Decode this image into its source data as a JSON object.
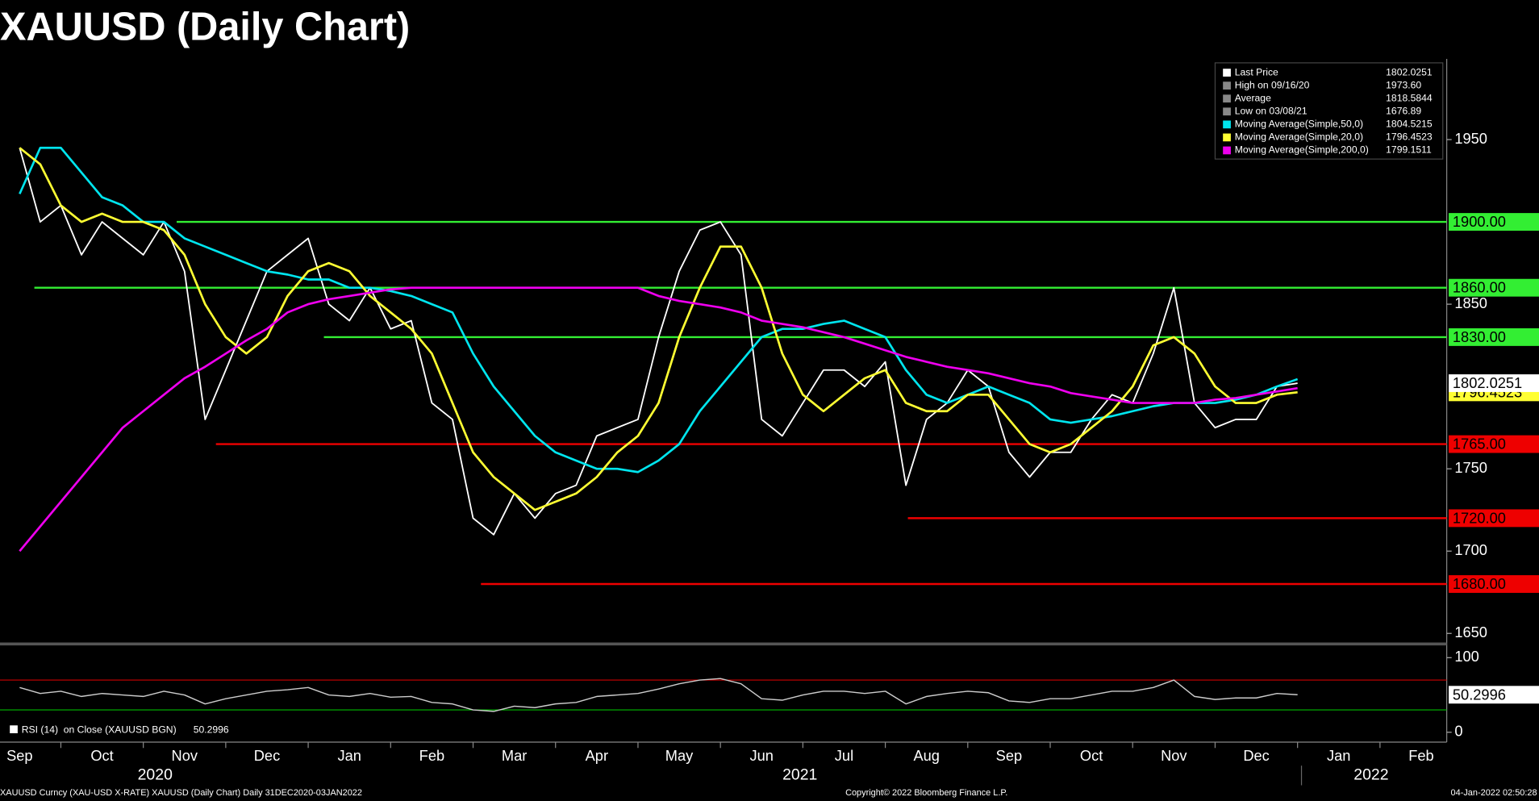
{
  "chart_data": {
    "type": "line",
    "title": "XAUUSD (Daily Chart)",
    "categories": [
      "Sep",
      null,
      null,
      null,
      "Oct",
      null,
      null,
      null,
      "Nov",
      null,
      null,
      null,
      "Dec",
      null,
      null,
      null,
      "Jan",
      null,
      null,
      null,
      "Feb",
      null,
      null,
      null,
      "Mar",
      null,
      null,
      null,
      "Apr",
      null,
      null,
      null,
      "May",
      null,
      null,
      null,
      "Jun",
      null,
      null,
      null,
      "Jul",
      null,
      null,
      null,
      "Aug",
      null,
      null,
      null,
      "Sep",
      null,
      null,
      null,
      "Oct",
      null,
      null,
      null,
      "Nov",
      null,
      null,
      null,
      "Dec",
      null,
      null,
      null,
      "Jan",
      null,
      null,
      null,
      "Feb"
    ],
    "years": [
      "2020",
      "2021",
      "2022"
    ],
    "ylim": [
      1646,
      1999
    ],
    "yticks": [
      1650,
      1700,
      1750,
      1850,
      1950
    ],
    "series": [
      {
        "name": "Last Price",
        "color": "#ffffff",
        "legend_value": 1802.0251,
        "values": [
          1945,
          1900,
          1910,
          1880,
          1900,
          1890,
          1880,
          1900,
          1870,
          1780,
          1810,
          1840,
          1870,
          1880,
          1890,
          1850,
          1840,
          1860,
          1835,
          1840,
          1790,
          1780,
          1720,
          1710,
          1735,
          1720,
          1735,
          1740,
          1770,
          1775,
          1780,
          1830,
          1870,
          1895,
          1900,
          1880,
          1780,
          1770,
          1790,
          1810,
          1810,
          1800,
          1815,
          1740,
          1780,
          1790,
          1810,
          1800,
          1760,
          1745,
          1760,
          1760,
          1780,
          1795,
          1790,
          1820,
          1860,
          1790,
          1775,
          1780,
          1780,
          1800,
          1802,
          null,
          null,
          null,
          null,
          null,
          null
        ]
      },
      {
        "name": "Moving Average(Simple,50,0)",
        "color": "#00e5ee",
        "legend_value": 1804.5215,
        "values": [
          1917,
          1945,
          1945,
          1930,
          1915,
          1910,
          1900,
          1900,
          1890,
          1885,
          1880,
          1875,
          1870,
          1868,
          1865,
          1865,
          1860,
          1860,
          1858,
          1855,
          1850,
          1845,
          1820,
          1800,
          1785,
          1770,
          1760,
          1755,
          1750,
          1750,
          1748,
          1755,
          1765,
          1785,
          1800,
          1815,
          1830,
          1835,
          1835,
          1838,
          1840,
          1835,
          1830,
          1810,
          1795,
          1790,
          1795,
          1800,
          1795,
          1790,
          1780,
          1778,
          1780,
          1782,
          1785,
          1788,
          1790,
          1790,
          1790,
          1792,
          1795,
          1800,
          1804.5,
          null,
          null,
          null,
          null,
          null,
          null
        ]
      },
      {
        "name": "Moving Average(Simple,20,0)",
        "color": "#ffff33",
        "legend_value": 1796.4523,
        "values": [
          1945,
          1935,
          1910,
          1900,
          1905,
          1900,
          1900,
          1895,
          1880,
          1850,
          1830,
          1820,
          1830,
          1855,
          1870,
          1875,
          1870,
          1855,
          1845,
          1835,
          1820,
          1790,
          1760,
          1745,
          1735,
          1725,
          1730,
          1735,
          1745,
          1760,
          1770,
          1790,
          1830,
          1860,
          1885,
          1885,
          1860,
          1820,
          1795,
          1785,
          1795,
          1805,
          1810,
          1790,
          1785,
          1785,
          1795,
          1795,
          1780,
          1765,
          1760,
          1765,
          1775,
          1785,
          1800,
          1825,
          1830,
          1820,
          1800,
          1790,
          1790,
          1795,
          1796.5,
          null,
          null,
          null,
          null,
          null,
          null
        ]
      },
      {
        "name": "Moving Average(Simple,200,0)",
        "color": "#ee00ee",
        "legend_value": 1799.1511,
        "values": [
          1700,
          1715,
          1730,
          1745,
          1760,
          1775,
          1785,
          1795,
          1805,
          1812,
          1820,
          1828,
          1835,
          1845,
          1850,
          1853,
          1855,
          1857,
          1859,
          1860,
          1860,
          1860,
          1860,
          1860,
          1860,
          1860,
          1860,
          1860,
          1860,
          1860,
          1860,
          1855,
          1852,
          1850,
          1848,
          1845,
          1840,
          1838,
          1836,
          1833,
          1830,
          1826,
          1822,
          1818,
          1815,
          1812,
          1810,
          1808,
          1805,
          1802,
          1800,
          1796,
          1794,
          1792,
          1790,
          1790,
          1790,
          1790,
          1792,
          1793,
          1795,
          1797,
          1799,
          null,
          null,
          null,
          null,
          null,
          null
        ]
      }
    ],
    "stats": [
      {
        "name": "High on 09/16/20",
        "value": 1973.6,
        "label": "1973.60"
      },
      {
        "name": "Average",
        "value": 1818.5844
      },
      {
        "name": "Low on 03/08/21",
        "value": 1676.89
      }
    ],
    "levels": [
      {
        "value": 1900,
        "label": "1900.00",
        "color": "#33ee33"
      },
      {
        "value": 1860,
        "label": "1860.00",
        "color": "#33ee33"
      },
      {
        "value": 1830,
        "label": "1830.00",
        "color": "#33ee33"
      },
      {
        "value": 1765,
        "label": "1765.00",
        "color": "#ee0000"
      },
      {
        "value": 1720,
        "label": "1720.00",
        "color": "#ee0000"
      },
      {
        "value": 1680,
        "label": "1680.00",
        "color": "#ee0000"
      }
    ],
    "rsi": {
      "name": "RSI (14)  on Close (XAUUSD BGN)",
      "last": 50.2996,
      "color": "#cccccc",
      "ylim": [
        0,
        100
      ],
      "yticks": [
        0,
        100
      ],
      "levels": [
        {
          "value": 70,
          "color": "#cc0000"
        },
        {
          "value": 30,
          "color": "#00bb00"
        }
      ],
      "values": [
        60,
        52,
        55,
        48,
        52,
        50,
        48,
        55,
        50,
        38,
        45,
        50,
        55,
        57,
        60,
        50,
        48,
        52,
        47,
        48,
        40,
        38,
        30,
        28,
        35,
        33,
        38,
        40,
        48,
        50,
        52,
        58,
        65,
        70,
        72,
        65,
        45,
        43,
        50,
        55,
        55,
        52,
        55,
        38,
        48,
        52,
        55,
        53,
        42,
        40,
        45,
        45,
        50,
        55,
        55,
        60,
        70,
        48,
        44,
        46,
        46,
        52,
        50.3,
        null,
        null,
        null,
        null,
        null,
        null
      ]
    },
    "footer": {
      "left": "XAUUSD Curncy (XAU-USD X-RATE) XAUUSD (Daily Chart)  Daily 31DEC2020-03JAN2022",
      "center": "Copyright© 2022 Bloomberg Finance L.P.",
      "right": "04-Jan-2022 02:50:28"
    }
  }
}
